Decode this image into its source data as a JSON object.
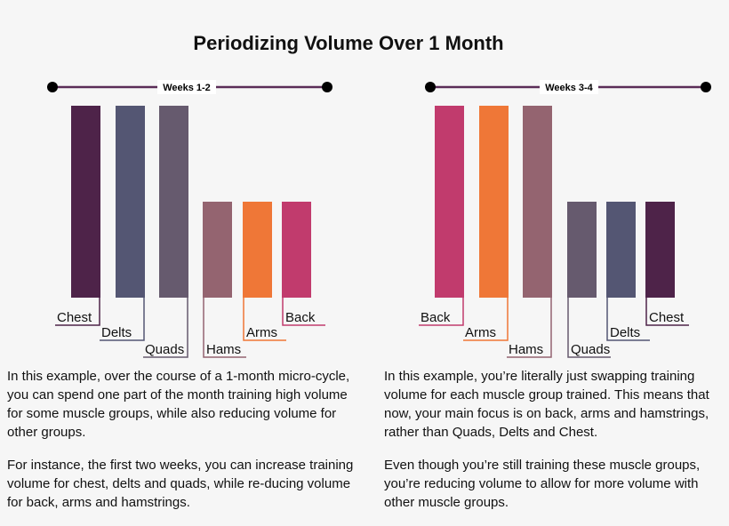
{
  "title": "Periodizing Volume Over 1 Month",
  "colors": {
    "Chest": "#4e2349",
    "Delts": "#545673",
    "Quads": "#665a6e",
    "Hams": "#946470",
    "Arms": "#ef7737",
    "Back": "#c13b6d"
  },
  "chart_data": [
    {
      "type": "bar",
      "title": "Weeks 1-2",
      "categories": [
        "Chest",
        "Delts",
        "Quads",
        "Hams",
        "Arms",
        "Back"
      ],
      "values": [
        2,
        2,
        2,
        1,
        1,
        1
      ],
      "ylim": [
        0,
        2
      ]
    },
    {
      "type": "bar",
      "title": "Weeks 3-4",
      "categories": [
        "Back",
        "Arms",
        "Hams",
        "Quads",
        "Delts",
        "Chest"
      ],
      "values": [
        2,
        2,
        2,
        1,
        1,
        1
      ],
      "ylim": [
        0,
        2
      ]
    }
  ],
  "left_text": [
    "In this example, over the course of a 1-month micro-cycle, you can spend one part of the month training high volume for some muscle groups, while also reducing volume for other groups.",
    "For instance, the first two weeks, you can increase training volume for chest, delts and quads, while re-ducing volume for back, arms and hamstrings."
  ],
  "right_text": [
    "In this example, you’re literally just swapping training volume for each muscle group trained. This means that now, your main focus is on back, arms and hamstrings, rather than Quads, Delts and Chest.",
    "Even though you’re still training these muscle groups, you’re reducing volume to allow for more volume with other muscle groups."
  ]
}
